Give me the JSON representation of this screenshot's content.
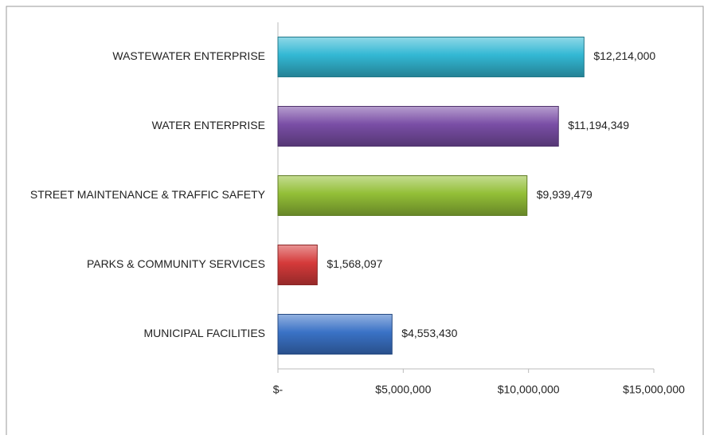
{
  "chart_data": {
    "type": "bar",
    "orientation": "horizontal",
    "categories": [
      "WASTEWATER ENTERPRISE",
      "WATER ENTERPRISE",
      "STREET MAINTENANCE & TRAFFIC SAFETY",
      "PARKS & COMMUNITY SERVICES",
      "MUNICIPAL FACILITIES"
    ],
    "values": [
      12214000,
      11194349,
      9939479,
      1568097,
      4553430
    ],
    "value_labels": [
      "$12,214,000",
      "$11,194,349",
      "$9,939,479",
      "$1,568,097",
      "$4,553,430"
    ],
    "colors": [
      "#33b8d4",
      "#7a4ea6",
      "#93bf37",
      "#d53a3a",
      "#3a72c6"
    ],
    "xlim": [
      0,
      15000000
    ],
    "xticks": [
      {
        "value": 0,
        "label": "$-"
      },
      {
        "value": 5000000,
        "label": "$5,000,000"
      },
      {
        "value": 10000000,
        "label": "$10,000,000"
      },
      {
        "value": 15000000,
        "label": "$15,000,000"
      }
    ]
  }
}
